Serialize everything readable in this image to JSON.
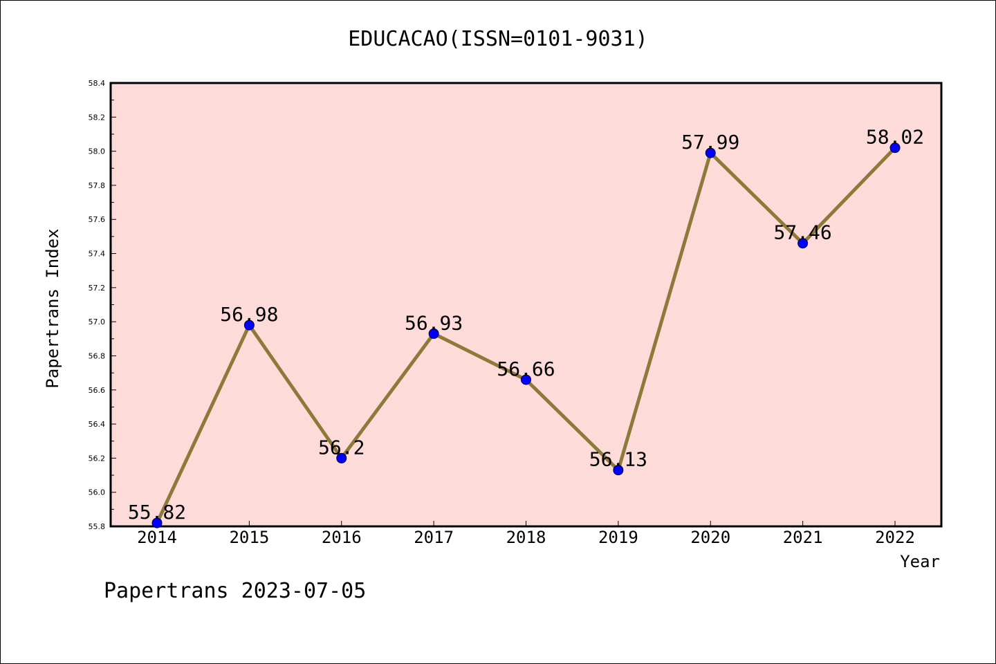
{
  "chart_data": {
    "type": "line",
    "title": "EDUCACAO(ISSN=0101-9031)",
    "xlabel": "Year",
    "ylabel": "Papertrans Index",
    "x": [
      "2014",
      "2015",
      "2016",
      "2017",
      "2018",
      "2019",
      "2020",
      "2021",
      "2022"
    ],
    "series": [
      {
        "values": [
          55.82,
          56.98,
          56.2,
          56.93,
          56.66,
          56.13,
          57.99,
          57.46,
          58.02
        ],
        "data_labels": [
          "55.82",
          "56.98",
          "56.2",
          "56.93",
          "56.66",
          "56.13",
          "57.99",
          "57.46",
          "58.02"
        ]
      }
    ],
    "ylim": [
      55.8,
      58.4
    ],
    "yticks": [
      "55.8",
      "56.0",
      "56.2",
      "56.4",
      "56.6",
      "56.8",
      "57.0",
      "57.2",
      "57.4",
      "57.6",
      "57.8",
      "58.0",
      "58.2",
      "58.4"
    ],
    "grid": false,
    "colors": {
      "plot_background": "#fddbd8",
      "line": "#8b7a3a",
      "marker": "#0000ff"
    }
  },
  "footer": "Papertrans 2023-07-05"
}
